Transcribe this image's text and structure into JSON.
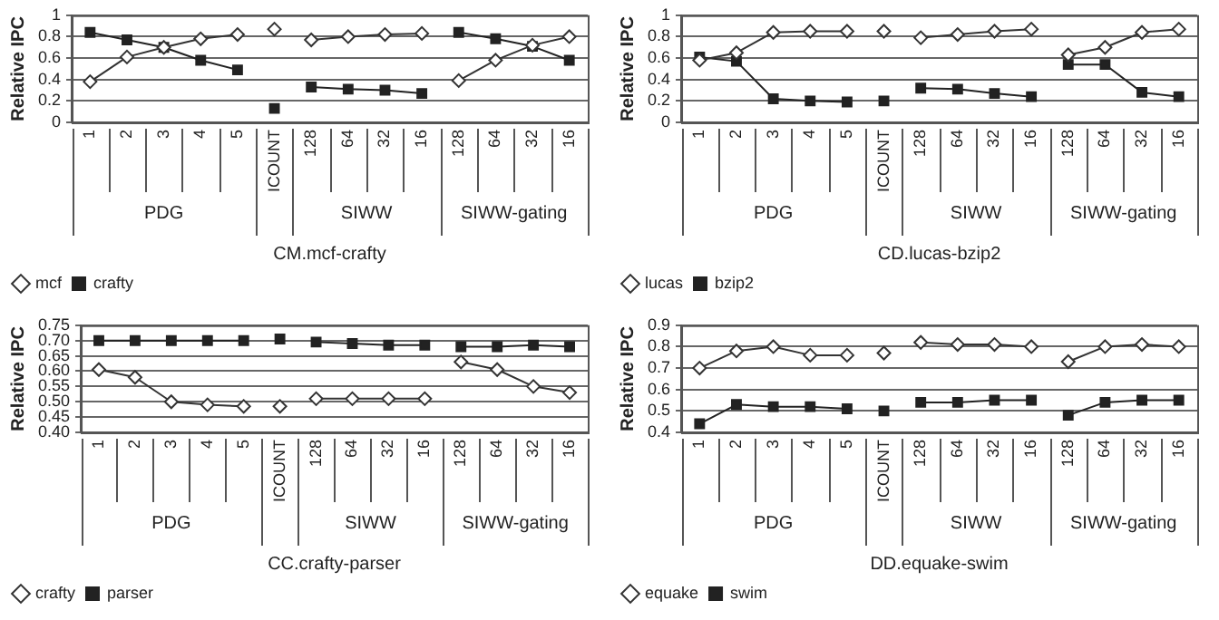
{
  "chart_data": [
    {
      "type": "line",
      "xlabel": "CM.mcf-crafty",
      "ylabel": "Relative IPC",
      "categories": [
        "1",
        "2",
        "3",
        "4",
        "5",
        "ICOUNT",
        "128",
        "64",
        "32",
        "16",
        "128",
        "64",
        "32",
        "16"
      ],
      "annotations": [
        "PDG",
        "SIWW",
        "SIWW-gating"
      ],
      "series": [
        {
          "name": "mcf",
          "color": "#333333",
          "marker": "diamond",
          "values": [
            0.38,
            0.61,
            0.7,
            0.78,
            0.82,
            null,
            0.77,
            0.8,
            0.82,
            0.83,
            0.39,
            0.58,
            0.72,
            0.8
          ]
        },
        {
          "name": "crafty",
          "color": "#222222",
          "marker": "square",
          "values": [
            0.84,
            0.77,
            0.7,
            0.58,
            0.49,
            null,
            0.33,
            0.31,
            0.3,
            0.27,
            0.84,
            0.78,
            0.71,
            0.58
          ]
        },
        {
          "type": "scatter",
          "color": "#333333",
          "marker": "diamond",
          "x": [
            "ICOUNT"
          ],
          "values": [
            0.87
          ]
        },
        {
          "type": "scatter",
          "color": "#222222",
          "marker": "square",
          "x": [
            "ICOUNT"
          ],
          "values": [
            0.13
          ]
        }
      ],
      "ylim": [
        0,
        1
      ],
      "yticks": [
        0,
        0.2,
        0.4,
        0.6,
        0.8,
        1
      ],
      "grid": "y",
      "legend": "bottom left"
    },
    {
      "type": "line",
      "xlabel": "CD.lucas-bzip2",
      "ylabel": "Relative IPC",
      "categories": [
        "1",
        "2",
        "3",
        "4",
        "5",
        "ICOUNT",
        "128",
        "64",
        "32",
        "16",
        "128",
        "64",
        "32",
        "16"
      ],
      "annotations": [
        "PDG",
        "SIWW",
        "SIWW-gating"
      ],
      "series": [
        {
          "name": "lucas",
          "color": "#333333",
          "marker": "diamond",
          "values": [
            0.58,
            0.65,
            0.84,
            0.85,
            0.85,
            null,
            0.79,
            0.82,
            0.85,
            0.87,
            0.63,
            0.7,
            0.84,
            0.87
          ]
        },
        {
          "name": "bzip2",
          "color": "#222222",
          "marker": "square",
          "values": [
            0.61,
            0.57,
            0.22,
            0.2,
            0.19,
            null,
            0.32,
            0.31,
            0.27,
            0.24,
            0.54,
            0.54,
            0.28,
            0.24
          ]
        },
        {
          "type": "scatter",
          "color": "#333333",
          "marker": "diamond",
          "x": [
            "ICOUNT"
          ],
          "values": [
            0.85
          ]
        },
        {
          "type": "scatter",
          "color": "#222222",
          "marker": "square",
          "x": [
            "ICOUNT"
          ],
          "values": [
            0.2
          ]
        }
      ],
      "ylim": [
        0,
        1
      ],
      "yticks": [
        0,
        0.2,
        0.4,
        0.6,
        0.8,
        1
      ],
      "grid": "y",
      "legend": "bottom left"
    },
    {
      "type": "line",
      "xlabel": "CC.crafty-parser",
      "ylabel": "Relative IPC",
      "categories": [
        "1",
        "2",
        "3",
        "4",
        "5",
        "ICOUNT",
        "128",
        "64",
        "32",
        "16",
        "128",
        "64",
        "32",
        "16"
      ],
      "annotations": [
        "PDG",
        "SIWW",
        "SIWW-gating"
      ],
      "series": [
        {
          "name": "crafty",
          "color": "#333333",
          "marker": "diamond",
          "values": [
            0.605,
            0.58,
            0.5,
            0.49,
            0.485,
            null,
            0.51,
            0.51,
            0.51,
            0.51,
            0.63,
            0.605,
            0.55,
            0.53
          ]
        },
        {
          "name": "parser",
          "color": "#222222",
          "marker": "square",
          "values": [
            0.7,
            0.7,
            0.7,
            0.7,
            0.7,
            null,
            0.695,
            0.69,
            0.685,
            0.685,
            0.68,
            0.68,
            0.685,
            0.68
          ]
        },
        {
          "type": "scatter",
          "color": "#333333",
          "marker": "diamond",
          "x": [
            "ICOUNT"
          ],
          "values": [
            0.485
          ]
        },
        {
          "type": "scatter",
          "color": "#222222",
          "marker": "square",
          "x": [
            "ICOUNT"
          ],
          "values": [
            0.705
          ]
        }
      ],
      "ylim": [
        0.4,
        0.75
      ],
      "yticks": [
        {
          "value": 0.4,
          "label": "0.40"
        },
        {
          "value": 0.45,
          "label": "0.45"
        },
        {
          "value": 0.5,
          "label": "0.50"
        },
        {
          "value": 0.55,
          "label": "0.55"
        },
        {
          "value": 0.6,
          "label": "0.60"
        },
        {
          "value": 0.65,
          "label": "0.65"
        },
        {
          "value": 0.7,
          "label": "0.70"
        },
        {
          "value": 0.75,
          "label": "0.75"
        }
      ],
      "grid": "y",
      "legend": "bottom left"
    },
    {
      "type": "line",
      "xlabel": "DD.equake-swim",
      "ylabel": "Relative IPC",
      "categories": [
        "1",
        "2",
        "3",
        "4",
        "5",
        "ICOUNT",
        "128",
        "64",
        "32",
        "16",
        "128",
        "64",
        "32",
        "16"
      ],
      "annotations": [
        "PDG",
        "SIWW",
        "SIWW-gating"
      ],
      "series": [
        {
          "name": "equake",
          "color": "#333333",
          "marker": "diamond",
          "values": [
            0.7,
            0.78,
            0.8,
            0.76,
            0.76,
            null,
            0.82,
            0.81,
            0.81,
            0.8,
            0.73,
            0.8,
            0.81,
            0.8
          ]
        },
        {
          "name": "swim",
          "color": "#222222",
          "marker": "square",
          "values": [
            0.44,
            0.53,
            0.52,
            0.52,
            0.51,
            null,
            0.54,
            0.54,
            0.55,
            0.55,
            0.48,
            0.54,
            0.55,
            0.55
          ]
        },
        {
          "type": "scatter",
          "color": "#333333",
          "marker": "diamond",
          "x": [
            "ICOUNT"
          ],
          "values": [
            0.77
          ]
        },
        {
          "type": "scatter",
          "color": "#222222",
          "marker": "square",
          "x": [
            "ICOUNT"
          ],
          "values": [
            0.5
          ]
        }
      ],
      "ylim": [
        0.4,
        0.9
      ],
      "yticks": [
        0.4,
        0.5,
        0.6,
        0.7,
        0.8,
        0.9
      ],
      "grid": "y",
      "legend": "bottom left"
    }
  ]
}
